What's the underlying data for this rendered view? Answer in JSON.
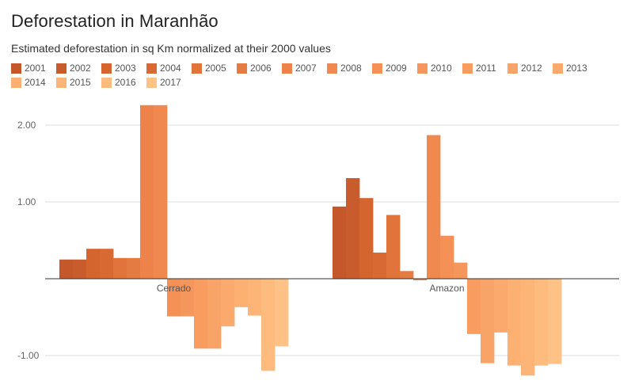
{
  "chart_data": {
    "type": "bar",
    "title": "Deforestation in Maranhão",
    "subtitle": "Estimated deforestation in sq Km normalized at their 2000 values",
    "categories": [
      "Cerrado",
      "Amazon"
    ],
    "xlabel": "",
    "ylabel": "",
    "ylim": [
      -1.3,
      2.4
    ],
    "yticks": [
      2.0,
      1.0,
      -1.0
    ],
    "ytick_labels": [
      "2.00",
      "1.00",
      "-1.00"
    ],
    "legend_position": "top",
    "series": [
      {
        "name": "2001",
        "color": "#c4582a",
        "values": [
          0.25,
          0.94
        ]
      },
      {
        "name": "2002",
        "color": "#c95c2c",
        "values": [
          0.25,
          1.31
        ]
      },
      {
        "name": "2003",
        "color": "#d5652f",
        "values": [
          0.39,
          1.05
        ]
      },
      {
        "name": "2004",
        "color": "#d86933",
        "values": [
          0.39,
          0.34
        ]
      },
      {
        "name": "2005",
        "color": "#e0743a",
        "values": [
          0.27,
          0.83
        ]
      },
      {
        "name": "2006",
        "color": "#e47b42",
        "values": [
          0.27,
          0.1
        ]
      },
      {
        "name": "2007",
        "color": "#ed834a",
        "values": [
          2.26,
          -0.02
        ]
      },
      {
        "name": "2008",
        "color": "#f08950",
        "values": [
          2.26,
          1.87
        ]
      },
      {
        "name": "2009",
        "color": "#f59056",
        "values": [
          -0.49,
          0.56
        ]
      },
      {
        "name": "2010",
        "color": "#f5975d",
        "values": [
          -0.49,
          0.21
        ]
      },
      {
        "name": "2011",
        "color": "#f89c60",
        "values": [
          -0.91,
          -0.72
        ]
      },
      {
        "name": "2012",
        "color": "#f8a367",
        "values": [
          -0.91,
          -1.1
        ]
      },
      {
        "name": "2013",
        "color": "#fba96c",
        "values": [
          -0.62,
          -0.7
        ]
      },
      {
        "name": "2014",
        "color": "#fcb072",
        "values": [
          -0.37,
          -1.13
        ]
      },
      {
        "name": "2015",
        "color": "#fcb577",
        "values": [
          -0.48,
          -1.26
        ]
      },
      {
        "name": "2016",
        "color": "#fdbb7e",
        "values": [
          -1.2,
          -1.13
        ]
      },
      {
        "name": "2017",
        "color": "#fec287",
        "values": [
          -0.88,
          -1.11
        ]
      }
    ]
  }
}
